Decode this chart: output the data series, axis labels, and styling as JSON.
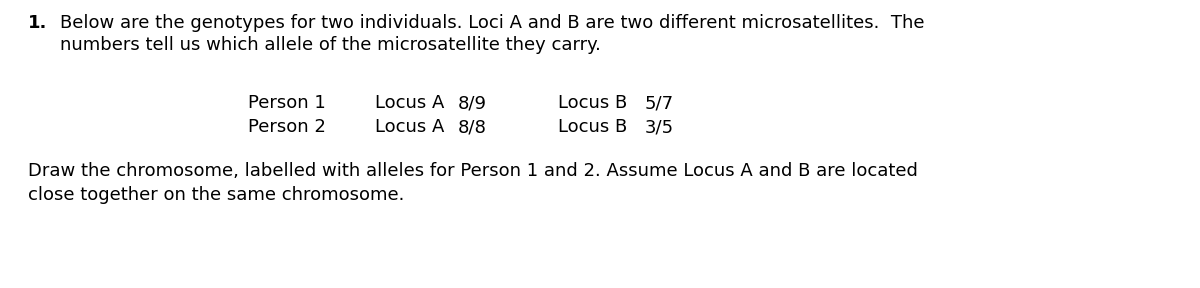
{
  "background_color": "#ffffff",
  "number_label": "1.",
  "para1_line1": "Below are the genotypes for two individuals. Loci A and B are two different microsatellites.  The",
  "para1_line2": "numbers tell us which allele of the microsatellite they carry.",
  "row1_col1": "Person 1",
  "row1_col2": "Locus A",
  "row1_col3": "8/9",
  "row1_col4": "Locus B",
  "row1_col5": "5/7",
  "row2_col1": "Person 2",
  "row2_col2": "Locus A",
  "row2_col3": "8/8",
  "row2_col4": "Locus B",
  "row2_col5": "3/5",
  "para2_line1": "Draw the chromosome, labelled with alleles for Person 1 and 2. Assume Locus A and B are located",
  "para2_line2": "close together on the same chromosome.",
  "font_size_body": 13.0,
  "text_color": "#000000",
  "font_family": "DejaVu Sans"
}
